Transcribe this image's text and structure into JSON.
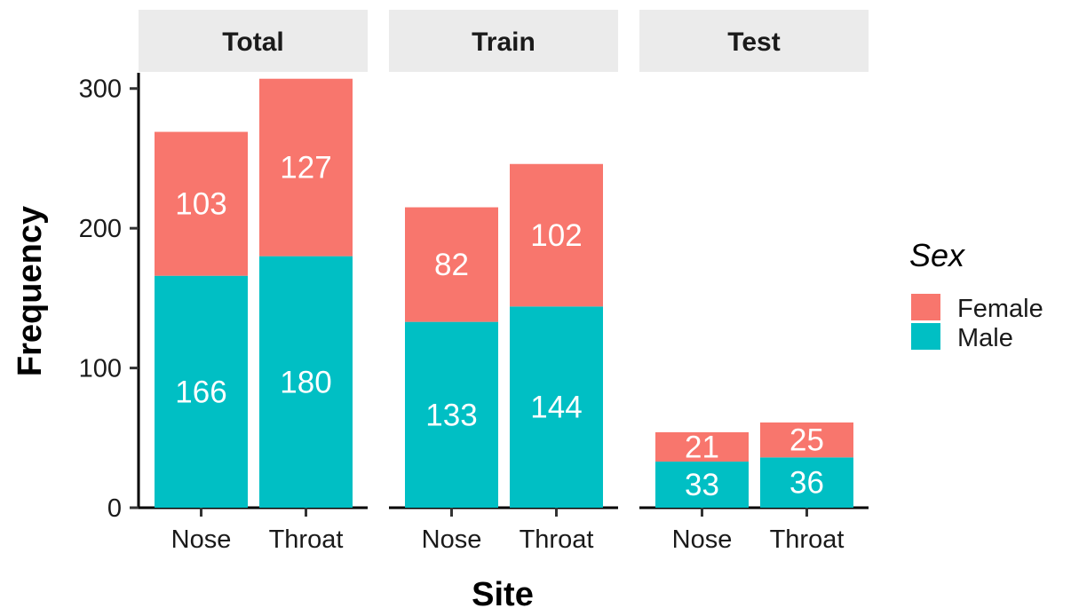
{
  "chart_data": {
    "type": "bar",
    "stacked": true,
    "facets": [
      "Total",
      "Train",
      "Test"
    ],
    "categories": [
      "Nose",
      "Throat"
    ],
    "series": [
      {
        "name": "Male",
        "color": "#00BFC4",
        "values": {
          "Total": [
            166,
            180
          ],
          "Train": [
            133,
            144
          ],
          "Test": [
            33,
            36
          ]
        }
      },
      {
        "name": "Female",
        "color": "#F8766D",
        "values": {
          "Total": [
            103,
            127
          ],
          "Train": [
            82,
            102
          ],
          "Test": [
            21,
            25
          ]
        }
      }
    ],
    "xlabel": "Site",
    "ylabel": "Frequency",
    "ylim": [
      0,
      310
    ],
    "yticks": [
      0,
      100,
      200,
      300
    ],
    "legend": {
      "title": "Sex",
      "position": "right",
      "entries": [
        {
          "label": "Female",
          "color": "#F8766D"
        },
        {
          "label": "Male",
          "color": "#00BFC4"
        }
      ]
    },
    "strip_color": "#EBEBEB"
  }
}
